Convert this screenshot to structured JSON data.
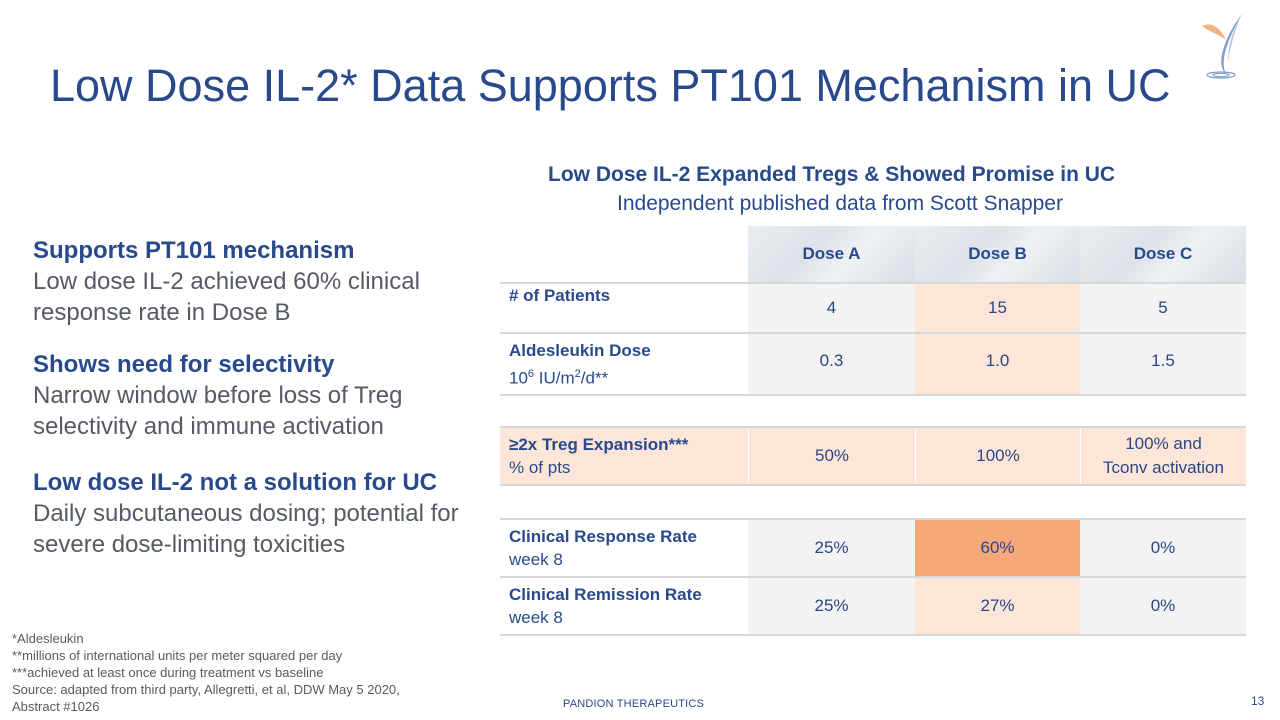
{
  "title": "Low Dose IL-2* Data Supports PT101 Mechanism in UC",
  "left": {
    "blocks": [
      {
        "heading": "Supports PT101 mechanism",
        "text": "Low dose IL-2 achieved 60% clinical response rate in Dose B"
      },
      {
        "heading": "Shows need for selectivity",
        "text": "Narrow window before loss of Treg selectivity and immune activation"
      },
      {
        "heading": "Low dose IL-2 not a solution for UC",
        "text": "Daily subcutaneous dosing; potential for severe dose-limiting toxicities"
      }
    ]
  },
  "footnotes": {
    "f1": "*Aldesleukin",
    "f2": "**millions of international units per meter squared per day",
    "f3": "***achieved at least once during treatment vs baseline",
    "source": "Source: adapted from third party, Allegretti, et al, DDW May 5 2020, Abstract #1026"
  },
  "table_heading": "Low Dose IL-2 Expanded Tregs & Showed Promise in UC",
  "table_subheading": "Independent published data from Scott Snapper",
  "table": {
    "columns": [
      "Dose A",
      "Dose B",
      "Dose C"
    ],
    "patients": {
      "label": "# of Patients",
      "values": [
        "4",
        "15",
        "5"
      ]
    },
    "dose": {
      "label": "Aldesleukin Dose",
      "unit_base": "10",
      "unit_exp": "6",
      "unit_mid": " IU/m",
      "unit_exp2": "2",
      "unit_end": "/d**",
      "values": [
        "0.3",
        "1.0",
        "1.5"
      ]
    },
    "treg": {
      "label": "≥2x Treg Expansion***",
      "sub": "% of pts",
      "values": [
        "50%",
        "100%"
      ],
      "value_c_line1": "100% and",
      "value_c_line2": "Tconv activation"
    },
    "crr": {
      "label": "Clinical Response Rate",
      "sub": "week 8",
      "values": [
        "25%",
        "60%",
        "0%"
      ]
    },
    "crem": {
      "label": "Clinical Remission Rate",
      "sub": "week 8",
      "values": [
        "25%",
        "27%",
        "0%"
      ]
    }
  },
  "company": "PANDION THERAPEUTICS",
  "page_number": "13",
  "colors": {
    "title": "#284a8c",
    "highlight": "#f6a878",
    "light_highlight": "#fde6d8",
    "neutral": "#f3f3f3"
  },
  "logo": "pandion-bird-logo"
}
